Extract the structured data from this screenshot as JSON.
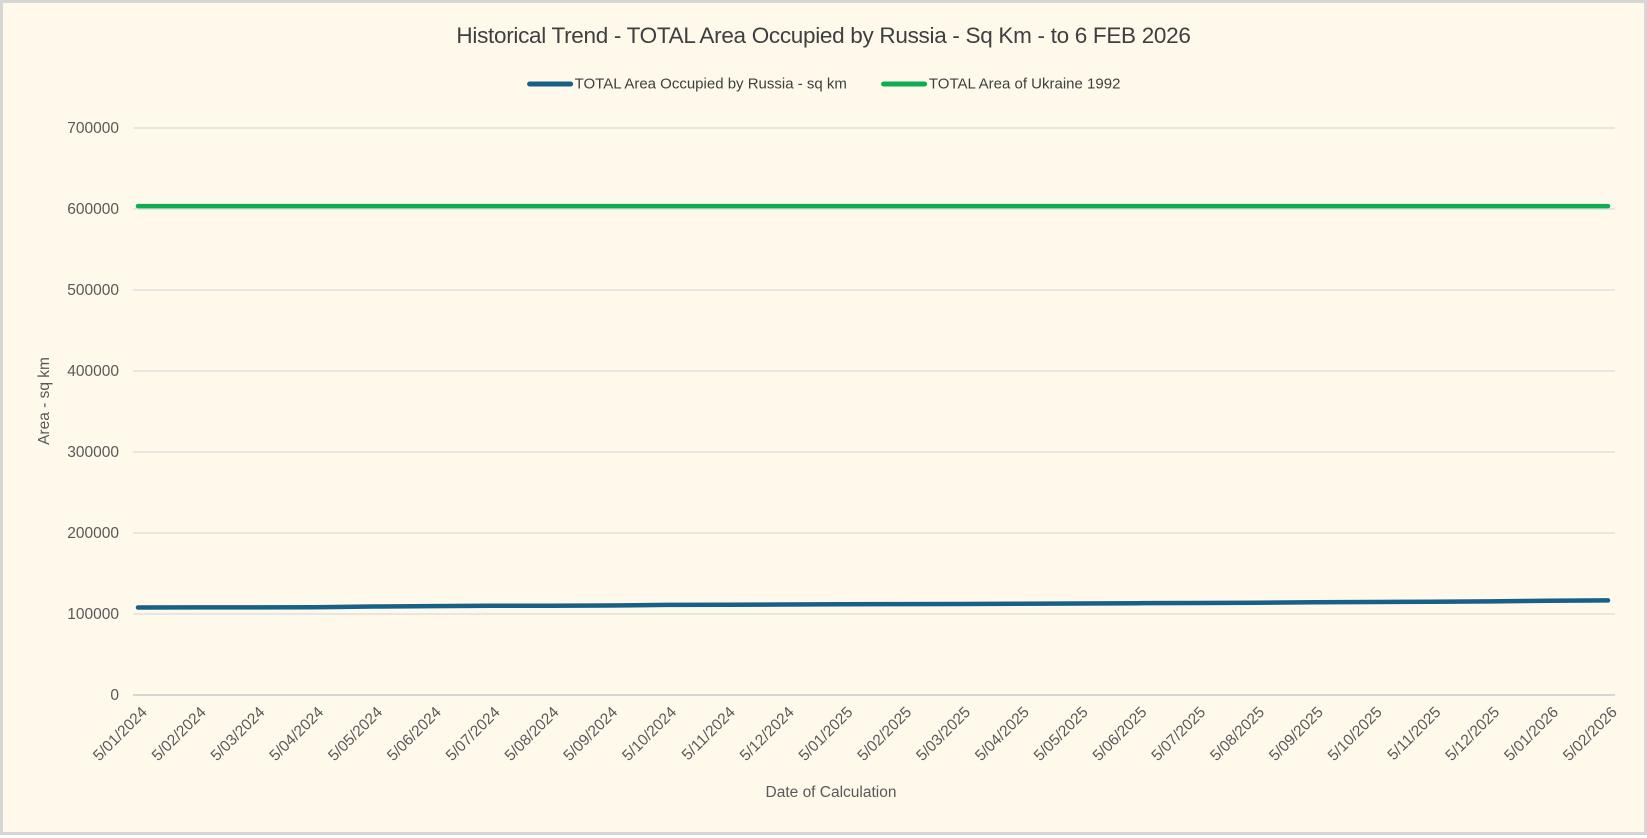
{
  "page": {
    "background_color": "#FFF9EC",
    "border_color": "#D6D6D4"
  },
  "chart_data": {
    "type": "line",
    "title": "Historical Trend - TOTAL Area Occupied by Russia - Sq Km - to 6 FEB 2026",
    "xlabel": "Date of Calculation",
    "ylabel": "Area - sq km",
    "ylim": [
      0,
      700000
    ],
    "ytick_step": 100000,
    "y_ticks": [
      0,
      100000,
      200000,
      300000,
      400000,
      500000,
      600000,
      700000
    ],
    "grid": true,
    "legend_position": "top-center",
    "categories": [
      "5/01/2024",
      "5/02/2024",
      "5/03/2024",
      "5/04/2024",
      "5/05/2024",
      "5/06/2024",
      "5/07/2024",
      "5/08/2024",
      "5/09/2024",
      "5/10/2024",
      "5/11/2024",
      "5/12/2024",
      "5/01/2025",
      "5/02/2025",
      "5/03/2025",
      "5/04/2025",
      "5/05/2025",
      "5/06/2025",
      "5/07/2025",
      "5/08/2025",
      "5/09/2025",
      "5/10/2025",
      "5/11/2025",
      "5/12/2025",
      "5/01/2026",
      "5/02/2026"
    ],
    "series": [
      {
        "name": "TOTAL Area Occupied by Russia - sq km",
        "color": "#176087",
        "values": [
          108000,
          108100,
          108200,
          108300,
          109300,
          109800,
          110100,
          110300,
          110500,
          111200,
          111500,
          111700,
          112000,
          112200,
          112400,
          112700,
          113000,
          113300,
          113600,
          114000,
          114500,
          114800,
          115200,
          115600,
          116300,
          116800
        ]
      },
      {
        "name": "TOTAL Area of Ukraine 1992",
        "color": "#0FAD53",
        "values": [
          603550,
          603550,
          603550,
          603550,
          603550,
          603550,
          603550,
          603550,
          603550,
          603550,
          603550,
          603550,
          603550,
          603550,
          603550,
          603550,
          603550,
          603550,
          603550,
          603550,
          603550,
          603550,
          603550,
          603550,
          603550,
          603550
        ]
      }
    ],
    "style": {
      "gridline_color": "#DCDCDC",
      "axis_line_color": "#C9C9C9",
      "tick_label_color": "#595959",
      "title_color": "#3F3F3F",
      "line_width": 4.5
    }
  }
}
